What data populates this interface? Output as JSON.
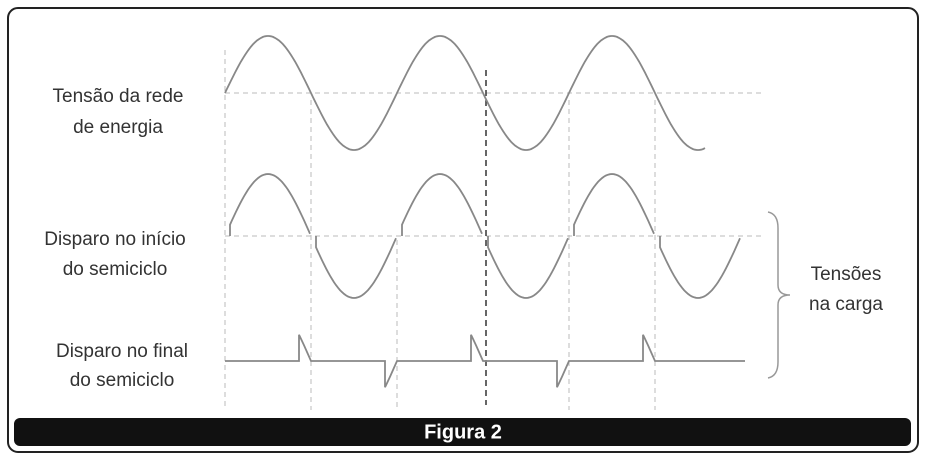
{
  "rows": [
    {
      "lines": [
        "Tensão da rede",
        "de energia"
      ]
    },
    {
      "lines": [
        "Disparo no início",
        "do semiciclo"
      ]
    },
    {
      "lines": [
        "Disparo no final",
        "do semiciclo"
      ]
    }
  ],
  "brace_label": {
    "lines": [
      "Tensões",
      "na carga"
    ]
  },
  "caption": "Figura 2"
}
